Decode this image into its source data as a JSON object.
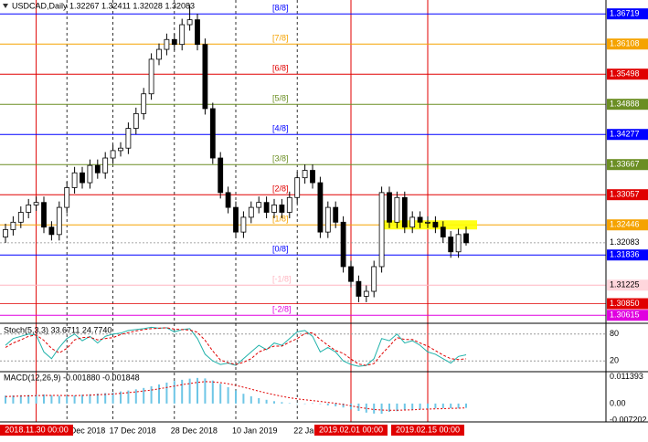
{
  "chart_data": {
    "type": "candlestick",
    "title": "USDCAD,Daily  1.32267 1.32411 1.32028 1.32083",
    "open": [
      1.322,
      1.3235,
      1.325,
      1.327,
      1.3285,
      1.329,
      1.324,
      1.3225,
      1.328,
      1.332,
      1.335,
      1.333,
      1.3365,
      1.335,
      1.338,
      1.3395,
      1.34,
      1.344,
      1.347,
      1.351,
      1.358,
      1.36,
      1.362,
      1.361,
      1.365,
      1.366,
      1.361,
      1.348,
      1.338,
      1.331,
      1.328,
      1.323,
      1.326,
      1.328,
      1.329,
      1.327,
      1.3285,
      1.327,
      1.33,
      1.334,
      1.3355,
      1.333,
      1.323,
      1.328,
      1.325,
      1.316,
      1.313,
      1.31,
      1.311,
      1.316,
      1.331,
      1.325,
      1.33,
      1.324,
      1.326,
      1.325,
      1.325,
      1.324,
      1.322,
      1.319,
      1.32267
    ],
    "high": [
      1.3247,
      1.3262,
      1.3282,
      1.3297,
      1.3302,
      1.3302,
      1.3252,
      1.3292,
      1.3332,
      1.3362,
      1.3362,
      1.3377,
      1.3377,
      1.3392,
      1.3407,
      1.3412,
      1.3452,
      1.3482,
      1.3522,
      1.3592,
      1.3612,
      1.3632,
      1.3632,
      1.3662,
      1.369,
      1.3672,
      1.3622,
      1.3492,
      1.3392,
      1.3322,
      1.3292,
      1.3272,
      1.3292,
      1.3302,
      1.3302,
      1.3297,
      1.3297,
      1.3312,
      1.3352,
      1.3367,
      1.3367,
      1.3342,
      1.3292,
      1.3292,
      1.3262,
      1.3172,
      1.3142,
      1.3122,
      1.3172,
      1.3322,
      1.3322,
      1.3312,
      1.3312,
      1.3272,
      1.3272,
      1.3262,
      1.3262,
      1.3252,
      1.3232,
      1.3237,
      1.32411
    ],
    "low": [
      1.3208,
      1.3223,
      1.3238,
      1.3258,
      1.3273,
      1.3228,
      1.3213,
      1.3213,
      1.3268,
      1.3308,
      1.3318,
      1.3318,
      1.3338,
      1.3338,
      1.3368,
      1.3383,
      1.3388,
      1.3428,
      1.3458,
      1.3498,
      1.3568,
      1.3588,
      1.3598,
      1.3598,
      1.3638,
      1.3598,
      1.3468,
      1.3368,
      1.3298,
      1.3268,
      1.3218,
      1.3218,
      1.3248,
      1.3268,
      1.3258,
      1.3258,
      1.3258,
      1.3258,
      1.3288,
      1.3328,
      1.3318,
      1.3218,
      1.3218,
      1.3238,
      1.3148,
      1.3118,
      1.3088,
      1.3088,
      1.3098,
      1.3148,
      1.3238,
      1.3238,
      1.3228,
      1.3228,
      1.3238,
      1.3238,
      1.3228,
      1.3208,
      1.3178,
      1.3178,
      1.32028
    ],
    "close": [
      1.3235,
      1.325,
      1.327,
      1.3285,
      1.329,
      1.324,
      1.3225,
      1.328,
      1.332,
      1.335,
      1.333,
      1.3365,
      1.335,
      1.338,
      1.3395,
      1.34,
      1.344,
      1.347,
      1.351,
      1.358,
      1.36,
      1.362,
      1.361,
      1.365,
      1.366,
      1.361,
      1.348,
      1.338,
      1.331,
      1.328,
      1.323,
      1.326,
      1.328,
      1.329,
      1.327,
      1.3285,
      1.327,
      1.33,
      1.334,
      1.3355,
      1.333,
      1.323,
      1.328,
      1.325,
      1.316,
      1.313,
      1.31,
      1.311,
      1.316,
      1.331,
      1.325,
      1.33,
      1.324,
      1.326,
      1.325,
      1.325,
      1.324,
      1.322,
      1.319,
      1.3225,
      1.32083
    ],
    "ylim": [
      1.3049,
      1.37
    ],
    "levels": [
      {
        "name": "[8/8]",
        "value": 1.36719,
        "color": "#0000ff"
      },
      {
        "name": "[7/8]",
        "value": 1.36108,
        "color": "#f5a300"
      },
      {
        "name": "[6/8]",
        "value": 1.35498,
        "color": "#e00000"
      },
      {
        "name": "[5/8]",
        "value": 1.34888,
        "color": "#6b8e23"
      },
      {
        "name": "[4/8]",
        "value": 1.34277,
        "color": "#0000ff"
      },
      {
        "name": "[3/8]",
        "value": 1.33667,
        "color": "#6b8e23"
      },
      {
        "name": "[2/8]",
        "value": 1.33057,
        "color": "#e00000"
      },
      {
        "name": "[1/8]",
        "value": 1.32446,
        "color": "#f5a300"
      },
      {
        "name": "[0/8]",
        "value": 1.31836,
        "color": "#0000ff"
      },
      {
        "name": "[-1/8]",
        "value": 1.31225,
        "color": "#ffb6c1"
      },
      {
        "name": "[-2/8]",
        "value": 1.30615,
        "color": "#e000e0"
      }
    ],
    "yticks": [
      {
        "value": 1.36719,
        "label": "1.36719",
        "color": "#0000ff"
      },
      {
        "value": 1.36108,
        "label": "1.36108",
        "color": "#f5a300"
      },
      {
        "value": 1.35498,
        "label": "1.35498",
        "color": "#e00000"
      },
      {
        "value": 1.34888,
        "label": "1.34888",
        "color": "#6b8e23"
      },
      {
        "value": 1.34277,
        "label": "1.34277",
        "color": "#0000ff"
      },
      {
        "value": 1.33667,
        "label": "1.33667",
        "color": "#6b8e23"
      },
      {
        "value": 1.33057,
        "label": "1.33057",
        "color": "#e00000"
      },
      {
        "value": 1.32446,
        "label": "1.32446",
        "color": "#f5a300"
      },
      {
        "value": 1.32083,
        "label": "1.32083",
        "color": "#ffffff"
      },
      {
        "value": 1.31836,
        "label": "1.31836",
        "color": "#0000ff"
      },
      {
        "value": 1.31225,
        "label": "1.31225",
        "color": "#ffd6dc"
      },
      {
        "value": 1.3085,
        "label": "1.30850",
        "color": "#e00000"
      },
      {
        "value": 1.30615,
        "label": "1.30615",
        "color": "#e000e0"
      }
    ],
    "xticks": [
      {
        "index": 8,
        "label": "6 Dec 2018"
      },
      {
        "index": 14,
        "label": "17 Dec 2018"
      },
      {
        "index": 22,
        "label": "28 Dec 2018"
      },
      {
        "index": 30,
        "label": "10 Jan 2019"
      },
      {
        "index": 38,
        "label": "22 Jan 2019"
      }
    ],
    "markers": [
      {
        "index": 4,
        "label": "2018.11.30 00:00"
      },
      {
        "index": 45,
        "label": "2019.02.01 00:00"
      },
      {
        "index": 55,
        "label": "2019.02.15 00:00"
      }
    ],
    "stochastic": {
      "title": "Stoch(5,3,3) 33.6711 24.7740",
      "ylim": [
        0,
        100
      ],
      "yticks": [
        80,
        20
      ],
      "main": [
        55,
        70,
        75,
        80,
        78,
        40,
        25,
        50,
        70,
        80,
        65,
        75,
        60,
        75,
        80,
        82,
        88,
        90,
        92,
        95,
        93,
        94,
        85,
        90,
        92,
        70,
        35,
        20,
        12,
        15,
        10,
        25,
        40,
        55,
        45,
        60,
        55,
        70,
        85,
        88,
        75,
        40,
        50,
        40,
        20,
        12,
        8,
        10,
        25,
        70,
        65,
        80,
        60,
        65,
        55,
        40,
        35,
        25,
        15,
        30,
        33.6711
      ],
      "signal": [
        50,
        60,
        67,
        75,
        78,
        66,
        48,
        38,
        48,
        67,
        72,
        73,
        67,
        70,
        72,
        79,
        83,
        87,
        90,
        92,
        93,
        94,
        91,
        90,
        89,
        84,
        66,
        42,
        22,
        16,
        12,
        17,
        25,
        40,
        47,
        53,
        53,
        62,
        70,
        81,
        83,
        68,
        55,
        43,
        37,
        24,
        13,
        10,
        14,
        35,
        53,
        72,
        68,
        68,
        60,
        53,
        43,
        33,
        25,
        23,
        24.774
      ]
    },
    "macd": {
      "title": "MACD(12,26,9) -0.001880 -0.001848",
      "ylim": [
        -0.0079,
        0.0133
      ],
      "yticks": [
        {
          "value": 0.011393,
          "label": "0.011393"
        },
        {
          "value": 0,
          "label": "0.00"
        },
        {
          "value": -0.007202,
          "label": "-0.007202"
        }
      ],
      "histogram": [
        0.0034,
        0.0035,
        0.0036,
        0.0037,
        0.0038,
        0.0039,
        0.0036,
        0.0033,
        0.0033,
        0.0035,
        0.0038,
        0.004,
        0.0043,
        0.0045,
        0.0048,
        0.0052,
        0.0056,
        0.0061,
        0.0067,
        0.0074,
        0.0082,
        0.009,
        0.0097,
        0.0102,
        0.0107,
        0.011,
        0.0108,
        0.0099,
        0.0085,
        0.007,
        0.0056,
        0.0042,
        0.0031,
        0.0023,
        0.0016,
        0.001,
        0.0006,
        0.0002,
        0.0,
        0.0,
        0.0001,
        0.0,
        -0.0008,
        -0.0012,
        -0.0017,
        -0.0025,
        -0.0032,
        -0.0039,
        -0.0043,
        -0.0044,
        -0.0036,
        -0.0033,
        -0.0027,
        -0.0026,
        -0.0024,
        -0.0022,
        -0.0021,
        -0.002,
        -0.002,
        -0.0021,
        -0.00188
      ],
      "signal": [
        0.003,
        0.0031,
        0.0032,
        0.0033,
        0.0034,
        0.0035,
        0.0035,
        0.0035,
        0.0034,
        0.0034,
        0.0035,
        0.0036,
        0.0038,
        0.0039,
        0.0041,
        0.0044,
        0.0047,
        0.005,
        0.0054,
        0.0058,
        0.0063,
        0.0069,
        0.0075,
        0.0081,
        0.0086,
        0.0091,
        0.0094,
        0.0093,
        0.009,
        0.0085,
        0.0078,
        0.007,
        0.0062,
        0.0053,
        0.0045,
        0.0038,
        0.0031,
        0.0025,
        0.002,
        0.0016,
        0.0013,
        0.0009,
        0.0005,
        0.0001,
        -0.0004,
        -0.001,
        -0.0016,
        -0.0021,
        -0.0026,
        -0.0028,
        -0.0029,
        -0.0029,
        -0.0028,
        -0.0027,
        -0.0025,
        -0.0024,
        -0.0023,
        -0.0022,
        -0.0021,
        -0.002,
        -0.001848
      ]
    }
  }
}
